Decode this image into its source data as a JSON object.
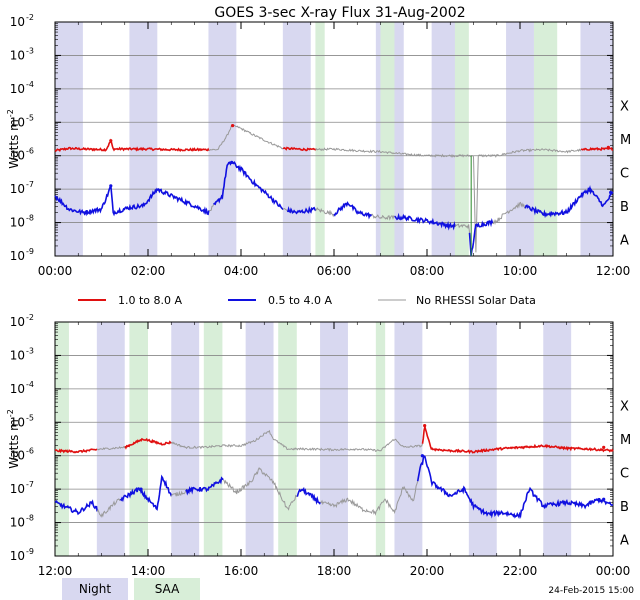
{
  "chart_data": {
    "type": "line",
    "title": "GOES 3-sec X-ray Flux   31-Aug-2002",
    "ylabel": "Watts m",
    "ylabel_exp": "-2",
    "yscale": "log",
    "ylim_exp": [
      -9,
      -2
    ],
    "y_ticks": [
      {
        "base": "10",
        "exp": "-2"
      },
      {
        "base": "10",
        "exp": "-3"
      },
      {
        "base": "10",
        "exp": "-4"
      },
      {
        "base": "10",
        "exp": "-5"
      },
      {
        "base": "10",
        "exp": "-6"
      },
      {
        "base": "10",
        "exp": "-7"
      },
      {
        "base": "10",
        "exp": "-8"
      },
      {
        "base": "10",
        "exp": "-9"
      }
    ],
    "flare_classes": [
      {
        "label": "X",
        "exp": -4
      },
      {
        "label": "M",
        "exp": -5
      },
      {
        "label": "C",
        "exp": -6
      },
      {
        "label": "B",
        "exp": -7
      },
      {
        "label": "A",
        "exp": -8
      }
    ],
    "series_meta": [
      {
        "name": "1.0 to 8.0 A",
        "color": "#e01010"
      },
      {
        "name": "0.5 to 4.0 A",
        "color": "#1010e0"
      },
      {
        "name": "No RHESSI Solar Data",
        "color": "#999999"
      }
    ],
    "panels": [
      {
        "x_range_h": [
          0,
          12
        ],
        "x_ticks": [
          "00:00",
          "02:00",
          "04:00",
          "06:00",
          "08:00",
          "10:00",
          "12:00"
        ],
        "night": [
          [
            0.0,
            0.6
          ],
          [
            1.6,
            2.2
          ],
          [
            3.3,
            3.9
          ],
          [
            4.9,
            5.5
          ],
          [
            6.9,
            7.5
          ],
          [
            8.1,
            8.7
          ],
          [
            9.7,
            10.3
          ],
          [
            11.3,
            12.0
          ]
        ],
        "saa": [
          [
            5.6,
            5.8
          ],
          [
            7.0,
            7.3
          ],
          [
            8.6,
            8.9
          ],
          [
            10.3,
            10.8
          ]
        ],
        "long_anchors": [
          [
            0,
            -5.85
          ],
          [
            0.3,
            -5.78
          ],
          [
            0.6,
            -5.8
          ],
          [
            1.1,
            -5.82
          ],
          [
            1.2,
            -5.55
          ],
          [
            1.25,
            -5.8
          ],
          [
            1.6,
            -5.8
          ],
          [
            2.0,
            -5.8
          ],
          [
            2.5,
            -5.82
          ],
          [
            3.0,
            -5.82
          ],
          [
            3.5,
            -5.82
          ],
          [
            3.7,
            -5.4
          ],
          [
            3.8,
            -5.1
          ],
          [
            3.95,
            -5.15
          ],
          [
            4.3,
            -5.4
          ],
          [
            4.6,
            -5.6
          ],
          [
            4.9,
            -5.78
          ],
          [
            5.5,
            -5.82
          ],
          [
            6.0,
            -5.8
          ],
          [
            6.5,
            -5.85
          ],
          [
            7.0,
            -5.88
          ],
          [
            7.5,
            -5.95
          ],
          [
            8.0,
            -6.0
          ],
          [
            8.5,
            -6.0
          ],
          [
            9.0,
            -6.0
          ],
          [
            9.05,
            -9.0
          ],
          [
            9.1,
            -6.0
          ],
          [
            9.5,
            -6.0
          ],
          [
            10.0,
            -5.85
          ],
          [
            10.5,
            -5.82
          ],
          [
            11.0,
            -5.88
          ],
          [
            11.5,
            -5.8
          ],
          [
            12.0,
            -5.8
          ]
        ],
        "long_red": [
          [
            0,
            3.3
          ],
          [
            4.9,
            5.6
          ],
          [
            11.3,
            12
          ]
        ],
        "short_anchors": [
          [
            0,
            -7.2
          ],
          [
            0.3,
            -7.6
          ],
          [
            0.6,
            -7.7
          ],
          [
            1.0,
            -7.6
          ],
          [
            1.15,
            -7.1
          ],
          [
            1.2,
            -6.9
          ],
          [
            1.25,
            -7.7
          ],
          [
            1.6,
            -7.55
          ],
          [
            1.9,
            -7.5
          ],
          [
            2.2,
            -7.0
          ],
          [
            2.5,
            -7.2
          ],
          [
            3.0,
            -7.5
          ],
          [
            3.3,
            -7.7
          ],
          [
            3.6,
            -7.2
          ],
          [
            3.7,
            -6.3
          ],
          [
            3.8,
            -6.2
          ],
          [
            4.0,
            -6.4
          ],
          [
            4.3,
            -6.85
          ],
          [
            4.6,
            -7.2
          ],
          [
            4.9,
            -7.6
          ],
          [
            5.2,
            -7.7
          ],
          [
            5.6,
            -7.6
          ],
          [
            6.0,
            -7.75
          ],
          [
            6.3,
            -7.4
          ],
          [
            6.5,
            -7.7
          ],
          [
            7.0,
            -7.85
          ],
          [
            7.5,
            -7.85
          ],
          [
            8.0,
            -7.95
          ],
          [
            8.5,
            -8.1
          ],
          [
            8.9,
            -8.1
          ],
          [
            8.95,
            -9.0
          ],
          [
            9.05,
            -8.1
          ],
          [
            9.5,
            -7.95
          ],
          [
            9.7,
            -7.7
          ],
          [
            10.0,
            -7.45
          ],
          [
            10.5,
            -7.75
          ],
          [
            11.0,
            -7.7
          ],
          [
            11.3,
            -7.2
          ],
          [
            11.5,
            -7.0
          ],
          [
            11.8,
            -7.5
          ],
          [
            12.0,
            -7.1
          ]
        ],
        "short_blue": [
          [
            0,
            3.3
          ],
          [
            3.4,
            4.9
          ],
          [
            5.0,
            5.6
          ],
          [
            6.0,
            6.8
          ],
          [
            7.3,
            8.6
          ],
          [
            8.9,
            9.4
          ],
          [
            10.1,
            12
          ]
        ],
        "markers": {
          "long": [
            [
              1.2,
              -5.55
            ],
            [
              3.82,
              -5.1
            ],
            [
              11.9,
              -5.75
            ]
          ],
          "short": [
            [
              1.2,
              -6.9
            ],
            [
              3.8,
              -6.2
            ],
            [
              11.5,
              -7.0
            ],
            [
              11.95,
              -7.1
            ]
          ]
        }
      },
      {
        "x_range_h": [
          12,
          24
        ],
        "x_ticks": [
          "12:00",
          "14:00",
          "16:00",
          "18:00",
          "20:00",
          "22:00",
          "00:00"
        ],
        "night": [
          [
            12.9,
            13.5
          ],
          [
            14.5,
            15.1
          ],
          [
            16.1,
            16.7
          ],
          [
            17.7,
            18.3
          ],
          [
            19.3,
            19.9
          ],
          [
            20.9,
            21.5
          ],
          [
            22.5,
            23.1
          ]
        ],
        "saa": [
          [
            12.0,
            12.3
          ],
          [
            13.6,
            14.0
          ],
          [
            15.2,
            15.6
          ],
          [
            16.8,
            17.2
          ],
          [
            18.9,
            19.1
          ]
        ],
        "long_anchors": [
          [
            12,
            -5.85
          ],
          [
            12.5,
            -5.88
          ],
          [
            13.0,
            -5.8
          ],
          [
            13.5,
            -5.75
          ],
          [
            13.9,
            -5.5
          ],
          [
            14.3,
            -5.65
          ],
          [
            14.5,
            -5.6
          ],
          [
            14.8,
            -5.75
          ],
          [
            15.2,
            -5.75
          ],
          [
            15.6,
            -5.7
          ],
          [
            16.0,
            -5.7
          ],
          [
            16.3,
            -5.55
          ],
          [
            16.6,
            -5.25
          ],
          [
            16.7,
            -5.5
          ],
          [
            17.0,
            -5.8
          ],
          [
            17.5,
            -5.8
          ],
          [
            18.0,
            -5.82
          ],
          [
            18.5,
            -5.8
          ],
          [
            19.0,
            -5.85
          ],
          [
            19.3,
            -5.5
          ],
          [
            19.5,
            -5.75
          ],
          [
            19.9,
            -5.7
          ],
          [
            19.95,
            -5.1
          ],
          [
            20.0,
            -5.4
          ],
          [
            20.1,
            -5.8
          ],
          [
            20.5,
            -5.85
          ],
          [
            21.0,
            -5.88
          ],
          [
            21.5,
            -5.8
          ],
          [
            22.0,
            -5.75
          ],
          [
            22.5,
            -5.7
          ],
          [
            23.0,
            -5.78
          ],
          [
            23.5,
            -5.8
          ],
          [
            24.0,
            -5.85
          ]
        ],
        "long_red": [
          [
            12.0,
            12.9
          ],
          [
            13.5,
            14.5
          ],
          [
            19.9,
            24.0
          ]
        ],
        "short_anchors": [
          [
            12,
            -7.4
          ],
          [
            12.5,
            -7.7
          ],
          [
            12.8,
            -7.4
          ],
          [
            13.0,
            -7.8
          ],
          [
            13.3,
            -7.4
          ],
          [
            13.8,
            -7.0
          ],
          [
            14.2,
            -7.6
          ],
          [
            14.3,
            -6.6
          ],
          [
            14.5,
            -7.2
          ],
          [
            15.0,
            -7.0
          ],
          [
            15.3,
            -7.0
          ],
          [
            15.6,
            -6.7
          ],
          [
            15.9,
            -7.1
          ],
          [
            16.2,
            -6.8
          ],
          [
            16.4,
            -6.4
          ],
          [
            16.7,
            -6.8
          ],
          [
            17.0,
            -7.6
          ],
          [
            17.3,
            -7.0
          ],
          [
            17.7,
            -7.4
          ],
          [
            18.0,
            -7.5
          ],
          [
            18.3,
            -7.3
          ],
          [
            18.6,
            -7.6
          ],
          [
            18.9,
            -7.7
          ],
          [
            19.1,
            -7.3
          ],
          [
            19.3,
            -7.7
          ],
          [
            19.5,
            -6.9
          ],
          [
            19.7,
            -7.4
          ],
          [
            19.85,
            -6.4
          ],
          [
            19.95,
            -6.0
          ],
          [
            20.1,
            -6.8
          ],
          [
            20.5,
            -7.2
          ],
          [
            20.8,
            -7.0
          ],
          [
            21.0,
            -7.5
          ],
          [
            21.3,
            -7.75
          ],
          [
            21.6,
            -7.7
          ],
          [
            22.0,
            -7.8
          ],
          [
            22.2,
            -7.0
          ],
          [
            22.5,
            -7.5
          ],
          [
            23.0,
            -7.4
          ],
          [
            23.4,
            -7.5
          ],
          [
            23.7,
            -7.3
          ],
          [
            24.0,
            -7.5
          ]
        ],
        "short_blue": [
          [
            12.0,
            12.9
          ],
          [
            13.4,
            14.5
          ],
          [
            14.8,
            15.6
          ],
          [
            17.2,
            17.7
          ],
          [
            19.8,
            24.0
          ]
        ],
        "markers": {
          "long": [
            [
              19.95,
              -5.1
            ],
            [
              23.8,
              -5.75
            ]
          ],
          "short": [
            [
              13.85,
              -7.0
            ],
            [
              19.9,
              -6.0
            ],
            [
              23.8,
              -7.3
            ]
          ]
        }
      }
    ],
    "legend_bottom": [
      {
        "label": "Night",
        "color": "#d8d8f0"
      },
      {
        "label": "SAA",
        "color": "#d8eed8"
      }
    ],
    "timestamp": "24-Feb-2015 15:00"
  }
}
